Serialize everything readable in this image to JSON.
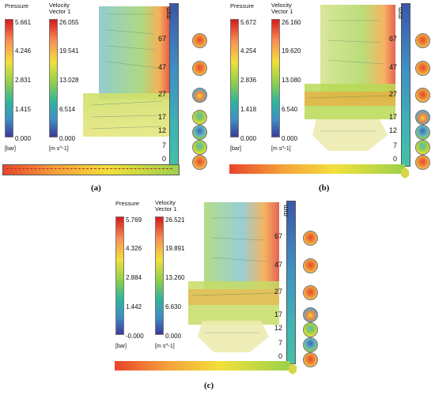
{
  "panels": [
    {
      "id": "a",
      "caption": "(a)",
      "pressure_title": "Pressure",
      "pressure_ticks": [
        "5.661",
        "4.246",
        "2.831",
        "1.415",
        "0.000"
      ],
      "pressure_unit": "[bar]",
      "velocity_title": "Velocity",
      "velocity_subtitle": "Vector 1",
      "velocity_ticks": [
        "26.055",
        "19.541",
        "13.028",
        "6.514",
        "0.000"
      ],
      "velocity_unit": "[m s^-1]",
      "ruler_unit": "mm",
      "ruler_ticks": [
        "67",
        "47",
        "27",
        "17",
        "12",
        "7",
        "0"
      ]
    },
    {
      "id": "b",
      "caption": "(b)",
      "pressure_title": "Pressure",
      "pressure_ticks": [
        "5.672",
        "4.254",
        "2.836",
        "1.418",
        "0.000"
      ],
      "pressure_unit": "[bar]",
      "velocity_title": "Velocity",
      "velocity_subtitle": "Vector 1",
      "velocity_ticks": [
        "26.160",
        "19.620",
        "13.080",
        "6.540",
        "0.000"
      ],
      "velocity_unit": "[m s^-1]",
      "ruler_unit": "mm",
      "ruler_ticks": [
        "67",
        "47",
        "27",
        "17",
        "12",
        "7",
        "0"
      ]
    },
    {
      "id": "c",
      "caption": "(c)",
      "pressure_title": "Pressure",
      "pressure_ticks": [
        "5.769",
        "4.326",
        "2.884",
        "1.442",
        "-0.000"
      ],
      "pressure_unit": "[bar]",
      "velocity_title": "Velocity",
      "velocity_subtitle": "Vector 1",
      "velocity_ticks": [
        "26.521",
        "19.891",
        "13.260",
        "6.630",
        "0.000"
      ],
      "velocity_unit": "[m s^-1]",
      "ruler_unit": "mm",
      "ruler_ticks": [
        "67",
        "47",
        "27",
        "17",
        "12",
        "7",
        "0"
      ]
    }
  ],
  "colors": {
    "high": "#d7191c",
    "mid": "#f2e03a",
    "low": "#3b3b9c"
  }
}
